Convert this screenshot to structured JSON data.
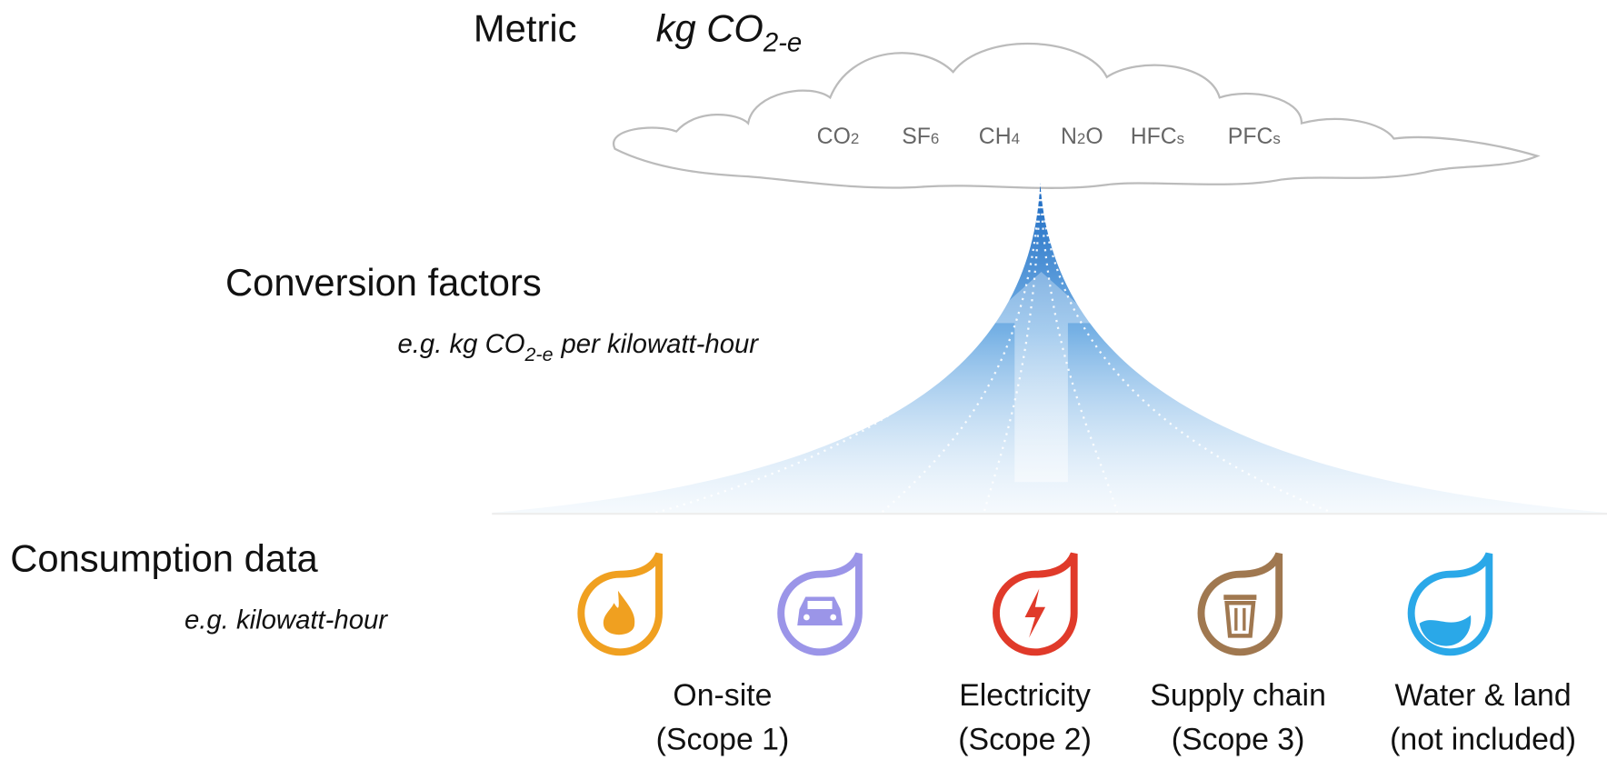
{
  "metric": {
    "label": "Metric",
    "unit": "kg CO",
    "unit_sub": "2-e"
  },
  "gases": [
    {
      "base": "CO",
      "sub": "2"
    },
    {
      "base": "SF",
      "sub": "6"
    },
    {
      "base": "CH",
      "sub": "4"
    },
    {
      "base": "N",
      "sub": "2",
      "after": "O"
    },
    {
      "base": "HFC",
      "sub": "s"
    },
    {
      "base": "PFC",
      "sub": "s"
    }
  ],
  "conversion": {
    "label": "Conversion factors",
    "example_prefix": "e.g. kg CO",
    "example_sub": "2-e",
    "example_suffix": "per kilowatt-hour"
  },
  "consumption": {
    "label": "Consumption data",
    "example": "e.g. kilowatt-hour"
  },
  "sources": [
    {
      "line1": "On-site",
      "line2": "(Scope 1)"
    },
    {
      "line1": "Electricity",
      "line2": "(Scope 2)"
    },
    {
      "line1": "Supply chain",
      "line2": "(Scope 3)"
    },
    {
      "line1": "Water & land",
      "line2": "(not included)"
    }
  ]
}
